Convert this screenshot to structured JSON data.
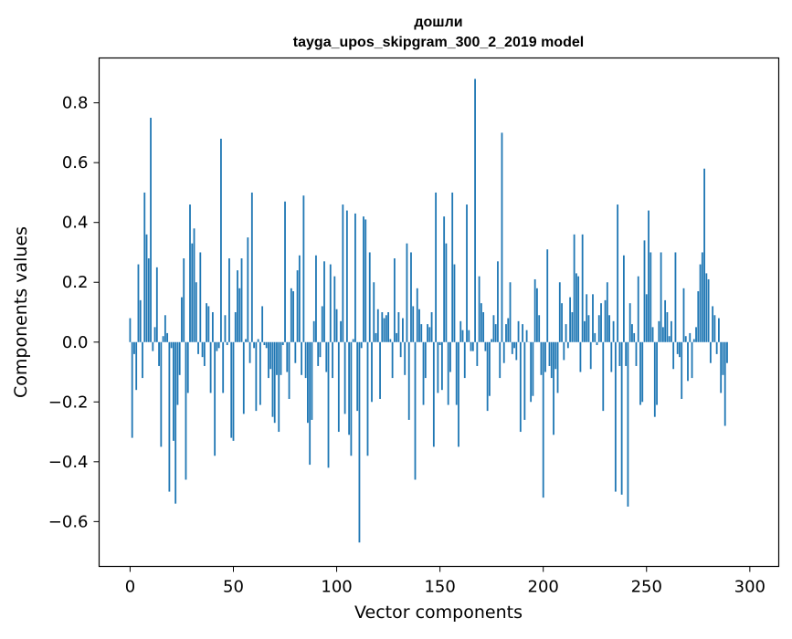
{
  "chart_data": {
    "type": "bar",
    "title": "дошли",
    "subtitle": "tayga_upos_skipgram_300_2_2019 model",
    "xlabel": "Vector components",
    "ylabel": "Components values",
    "xlim": [
      -15,
      314
    ],
    "ylim": [
      -0.75,
      0.95
    ],
    "x_ticks": [
      0,
      50,
      100,
      150,
      200,
      250,
      300
    ],
    "y_ticks": [
      -0.6,
      -0.4,
      -0.2,
      0.0,
      0.2,
      0.4,
      0.6,
      0.8
    ],
    "y_tick_labels": [
      "−0.6",
      "−0.4",
      "−0.2",
      "0.0",
      "0.2",
      "0.4",
      "0.6",
      "0.8"
    ],
    "x_tick_labels": [
      "0",
      "50",
      "100",
      "150",
      "200",
      "250",
      "300"
    ],
    "grid": false,
    "bar_color": "#1f77b4",
    "values": [
      0.08,
      -0.32,
      -0.04,
      -0.16,
      0.26,
      0.14,
      -0.12,
      0.5,
      0.36,
      0.28,
      0.75,
      -0.03,
      0.05,
      0.25,
      -0.08,
      -0.35,
      0.02,
      0.09,
      0.03,
      -0.5,
      -0.02,
      -0.33,
      -0.54,
      -0.21,
      -0.11,
      0.15,
      0.28,
      -0.46,
      -0.17,
      0.46,
      0.33,
      0.38,
      0.2,
      -0.04,
      0.3,
      -0.05,
      -0.08,
      0.13,
      0.12,
      -0.17,
      0.1,
      -0.38,
      -0.03,
      -0.02,
      0.68,
      -0.17,
      0.09,
      -0.01,
      0.28,
      -0.32,
      -0.33,
      0.1,
      0.24,
      0.18,
      0.28,
      -0.24,
      0.01,
      0.35,
      -0.07,
      0.5,
      -0.02,
      -0.23,
      0.01,
      -0.21,
      0.12,
      -0.01,
      -0.02,
      -0.12,
      -0.09,
      -0.25,
      -0.27,
      -0.11,
      -0.3,
      -0.11,
      -0.01,
      0.47,
      -0.1,
      -0.19,
      0.18,
      0.17,
      -0.07,
      0.24,
      0.29,
      -0.11,
      0.49,
      -0.12,
      -0.27,
      -0.41,
      -0.26,
      0.07,
      0.29,
      -0.08,
      -0.05,
      0.12,
      0.27,
      -0.1,
      -0.42,
      0.26,
      -0.12,
      0.22,
      0.11,
      -0.3,
      0.07,
      0.46,
      -0.24,
      0.44,
      -0.31,
      -0.38,
      0.01,
      0.43,
      -0.23,
      -0.67,
      -0.02,
      0.42,
      0.41,
      -0.38,
      0.3,
      -0.2,
      0.2,
      0.03,
      0.11,
      -0.19,
      0.1,
      0.08,
      0.09,
      0.1,
      0.01,
      -0.12,
      0.28,
      0.03,
      0.1,
      -0.05,
      0.08,
      -0.11,
      0.33,
      -0.26,
      0.3,
      0.12,
      -0.46,
      0.18,
      0.11,
      0.06,
      -0.21,
      -0.12,
      0.06,
      0.05,
      0.1,
      -0.35,
      0.5,
      -0.17,
      -0.01,
      -0.16,
      0.42,
      0.33,
      -0.21,
      -0.1,
      0.5,
      0.26,
      -0.21,
      -0.35,
      0.07,
      0.04,
      -0.12,
      0.46,
      0.04,
      -0.03,
      -0.03,
      0.88,
      -0.08,
      0.22,
      0.13,
      0.1,
      -0.03,
      -0.23,
      -0.18,
      0.01,
      0.09,
      0.06,
      0.27,
      -0.12,
      0.7,
      -0.07,
      0.06,
      0.08,
      0.2,
      -0.04,
      -0.02,
      -0.06,
      0.07,
      -0.3,
      0.06,
      -0.26,
      0.04,
      0.0,
      -0.2,
      -0.18,
      0.21,
      0.18,
      0.09,
      -0.11,
      -0.52,
      -0.1,
      0.31,
      -0.08,
      -0.12,
      -0.31,
      -0.09,
      -0.17,
      0.2,
      0.13,
      -0.06,
      0.06,
      -0.02,
      0.15,
      0.1,
      0.36,
      0.23,
      0.22,
      -0.1,
      0.36,
      0.07,
      0.16,
      0.09,
      -0.09,
      0.16,
      0.03,
      -0.01,
      0.09,
      0.13,
      -0.23,
      0.14,
      0.2,
      0.09,
      -0.1,
      0.07,
      -0.5,
      0.46,
      -0.08,
      -0.51,
      0.29,
      -0.08,
      -0.55,
      0.13,
      0.06,
      0.03,
      -0.08,
      0.22,
      -0.21,
      -0.2,
      0.34,
      0.16,
      0.44,
      0.3,
      0.05,
      -0.25,
      -0.21,
      0.07,
      0.3,
      0.05,
      0.14,
      0.1,
      0.02,
      0.07,
      -0.09,
      0.3,
      -0.04,
      -0.05,
      -0.19,
      0.18,
      0.02,
      -0.13,
      0.03,
      -0.12,
      0.01,
      0.05,
      0.17,
      0.26,
      0.3,
      0.58,
      0.23,
      0.21,
      -0.07,
      0.12,
      0.09,
      -0.04,
      0.08,
      -0.17,
      -0.11,
      -0.28,
      -0.07
    ]
  }
}
